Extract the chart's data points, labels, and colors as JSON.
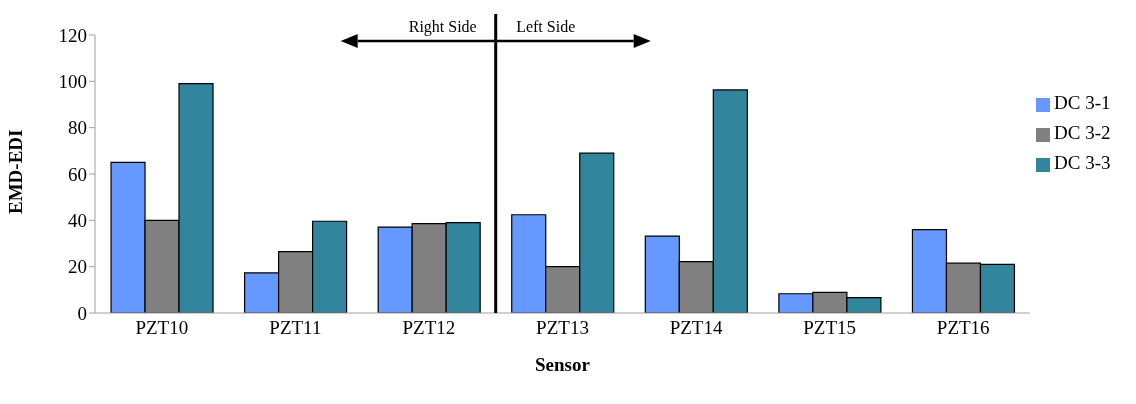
{
  "chart_data": {
    "type": "bar",
    "xlabel": "Sensor",
    "ylabel": "EMD-EDI",
    "categories": [
      "PZT10",
      "PZT11",
      "PZT12",
      "PZT13",
      "PZT14",
      "PZT15",
      "PZT16"
    ],
    "series": [
      {
        "name": "DC 3-1",
        "color": "#6699ff",
        "values": [
          65,
          17.3,
          37.1,
          42.4,
          33.2,
          8.3,
          36
        ]
      },
      {
        "name": "DC 3-2",
        "color": "#808080",
        "values": [
          40,
          26.5,
          38.6,
          20,
          22.2,
          8.9,
          21.5
        ]
      },
      {
        "name": "DC 3-3",
        "color": "#31859c",
        "values": [
          99,
          39.6,
          39,
          69,
          96.3,
          6.6,
          21
        ]
      }
    ],
    "ylim": [
      0,
      120
    ],
    "yticks": [
      0,
      20,
      40,
      60,
      80,
      100,
      120
    ],
    "grid": false,
    "legend": "right",
    "annotations": [
      "Right Side",
      "Left Side"
    ]
  }
}
